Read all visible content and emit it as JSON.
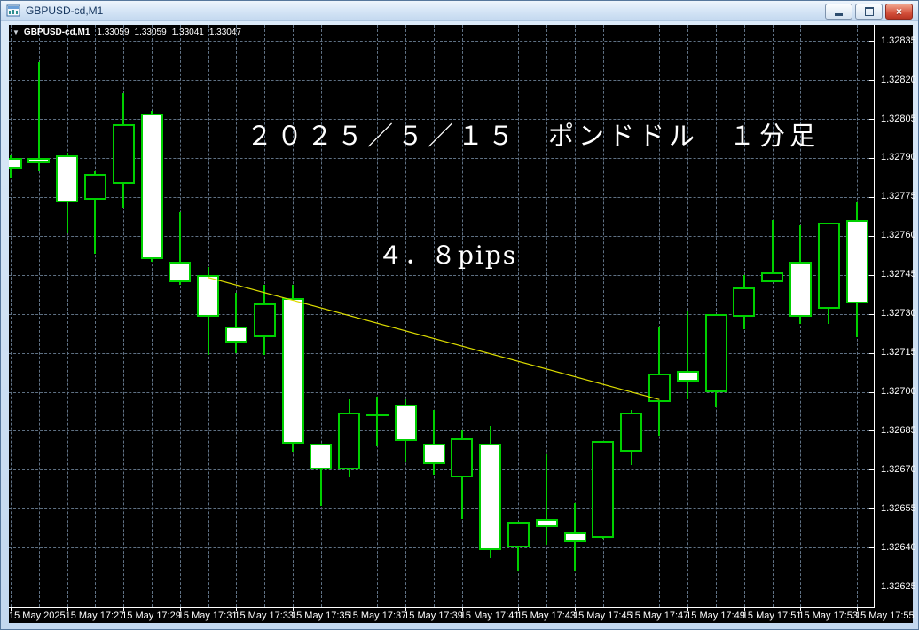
{
  "window": {
    "title": "GBPUSD-cd,M1",
    "buttons": {
      "minimize": "minimize",
      "restore": "restore",
      "close": "close"
    }
  },
  "header": {
    "symbol": "GBPUSD-cd,M1",
    "open": "1.33059",
    "high": "1.33059",
    "low": "1.33041",
    "close": "1.33047"
  },
  "colors": {
    "chart_background": "#000000",
    "candle_outline": "#00d000",
    "bull_fill": "#000000",
    "bear_fill": "#ffffff",
    "grid": "#5f7184",
    "trendline": "#dcdc00",
    "axis_text": "#ffffff",
    "annotation_text": "#ffffff"
  },
  "chart_data": {
    "type": "candlestick",
    "symbol": "GBPUSD-cd",
    "timeframe": "M1",
    "grid": true,
    "price_axis": {
      "min": 1.32625,
      "max": 1.32835,
      "tick_step": 0.00015
    },
    "price_axis_labels": [
      "1.32835",
      "1.32820",
      "1.32805",
      "1.32790",
      "1.32775",
      "1.32760",
      "1.32745",
      "1.32730",
      "1.32715",
      "1.32700",
      "1.32685",
      "1.32670",
      "1.32655",
      "1.32640",
      "1.32625"
    ],
    "time_axis_labels": [
      "15 May 2025",
      "15 May 17:27",
      "15 May 17:29",
      "15 May 17:31",
      "15 May 17:33",
      "15 May 17:35",
      "15 May 17:37",
      "15 May 17:39",
      "15 May 17:41",
      "15 May 17:43",
      "15 May 17:45",
      "15 May 17:47",
      "15 May 17:49",
      "15 May 17:51",
      "15 May 17:53",
      "15 May 17:55"
    ],
    "candles": [
      {
        "t": "17:25",
        "o": 1.3279,
        "h": 1.32791,
        "l": 1.32782,
        "c": 1.32786
      },
      {
        "t": "17:26",
        "o": 1.3279,
        "h": 1.32827,
        "l": 1.32785,
        "c": 1.32788
      },
      {
        "t": "17:27",
        "o": 1.32791,
        "h": 1.32792,
        "l": 1.32761,
        "c": 1.32773
      },
      {
        "t": "17:28",
        "o": 1.32774,
        "h": 1.32785,
        "l": 1.32753,
        "c": 1.32784
      },
      {
        "t": "17:29",
        "o": 1.3278,
        "h": 1.32815,
        "l": 1.32771,
        "c": 1.32803
      },
      {
        "t": "17:30",
        "o": 1.32807,
        "h": 1.32808,
        "l": 1.3275,
        "c": 1.32751
      },
      {
        "t": "17:31",
        "o": 1.3275,
        "h": 1.32769,
        "l": 1.32741,
        "c": 1.32742
      },
      {
        "t": "17:32",
        "o": 1.32745,
        "h": 1.32748,
        "l": 1.32714,
        "c": 1.32729
      },
      {
        "t": "17:33",
        "o": 1.32725,
        "h": 1.32738,
        "l": 1.32715,
        "c": 1.32719
      },
      {
        "t": "17:34",
        "o": 1.32721,
        "h": 1.32741,
        "l": 1.32714,
        "c": 1.32734
      },
      {
        "t": "17:35",
        "o": 1.32736,
        "h": 1.32741,
        "l": 1.32677,
        "c": 1.3268
      },
      {
        "t": "17:36",
        "o": 1.3268,
        "h": 1.3268,
        "l": 1.32656,
        "c": 1.3267
      },
      {
        "t": "17:37",
        "o": 1.3267,
        "h": 1.32697,
        "l": 1.32667,
        "c": 1.32692
      },
      {
        "t": "17:38",
        "o": 1.32691,
        "h": 1.32698,
        "l": 1.32679,
        "c": 1.32691
      },
      {
        "t": "17:39",
        "o": 1.32695,
        "h": 1.32697,
        "l": 1.32673,
        "c": 1.32681
      },
      {
        "t": "17:40",
        "o": 1.3268,
        "h": 1.32693,
        "l": 1.32668,
        "c": 1.32672
      },
      {
        "t": "17:41",
        "o": 1.32667,
        "h": 1.32685,
        "l": 1.32651,
        "c": 1.32682
      },
      {
        "t": "17:42",
        "o": 1.3268,
        "h": 1.32687,
        "l": 1.32636,
        "c": 1.32639
      },
      {
        "t": "17:43",
        "o": 1.3264,
        "h": 1.3265,
        "l": 1.32631,
        "c": 1.3265
      },
      {
        "t": "17:44",
        "o": 1.32651,
        "h": 1.32676,
        "l": 1.32641,
        "c": 1.32648
      },
      {
        "t": "17:45",
        "o": 1.32646,
        "h": 1.32657,
        "l": 1.32631,
        "c": 1.32642
      },
      {
        "t": "17:46",
        "o": 1.32644,
        "h": 1.32681,
        "l": 1.32643,
        "c": 1.32681
      },
      {
        "t": "17:47",
        "o": 1.32677,
        "h": 1.32693,
        "l": 1.32672,
        "c": 1.32692
      },
      {
        "t": "17:48",
        "o": 1.32696,
        "h": 1.32725,
        "l": 1.32683,
        "c": 1.32707
      },
      {
        "t": "17:49",
        "o": 1.32708,
        "h": 1.32731,
        "l": 1.32697,
        "c": 1.32704
      },
      {
        "t": "17:50",
        "o": 1.327,
        "h": 1.3273,
        "l": 1.32694,
        "c": 1.3273
      },
      {
        "t": "17:51",
        "o": 1.32729,
        "h": 1.32745,
        "l": 1.32724,
        "c": 1.3274
      },
      {
        "t": "17:52",
        "o": 1.32742,
        "h": 1.32766,
        "l": 1.32742,
        "c": 1.32746
      },
      {
        "t": "17:53",
        "o": 1.3275,
        "h": 1.32764,
        "l": 1.32726,
        "c": 1.32729
      },
      {
        "t": "17:54",
        "o": 1.32732,
        "h": 1.32765,
        "l": 1.32726,
        "c": 1.32765
      },
      {
        "t": "17:55",
        "o": 1.32766,
        "h": 1.32773,
        "l": 1.32721,
        "c": 1.32734
      }
    ],
    "trendline": {
      "from": {
        "time": "17:32",
        "price": 1.32744
      },
      "to": {
        "time": "17:48",
        "price": 1.32697
      }
    },
    "annotations": {
      "date_label": "２０２５／５／１５　ポンドドル　１分足",
      "pips_label": "４．８pips"
    }
  }
}
